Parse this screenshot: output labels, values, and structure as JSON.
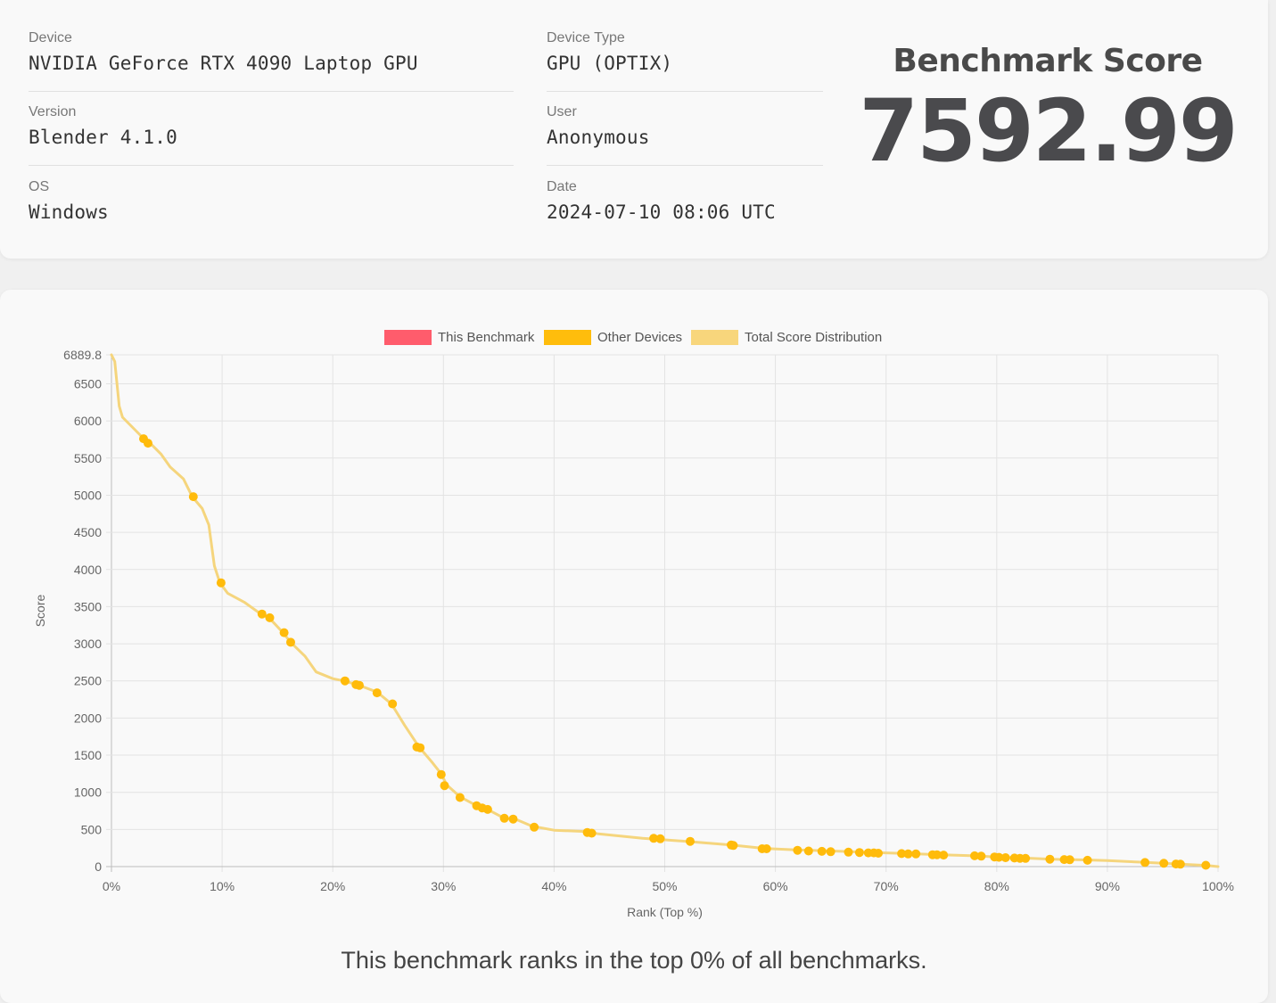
{
  "info": {
    "device_label": "Device",
    "device_value": "NVIDIA GeForce RTX 4090 Laptop GPU",
    "version_label": "Version",
    "version_value": "Blender 4.1.0",
    "os_label": "OS",
    "os_value": "Windows",
    "device_type_label": "Device Type",
    "device_type_value": "GPU (OPTIX)",
    "user_label": "User",
    "user_value": "Anonymous",
    "date_label": "Date",
    "date_value": "2024-07-10 08:06 UTC"
  },
  "score": {
    "title": "Benchmark Score",
    "value": "7592.99"
  },
  "rank_text": "This benchmark ranks in the top 0% of all benchmarks.",
  "chart_data": {
    "type": "line",
    "xlabel": "Rank (Top %)",
    "ylabel": "Score",
    "xlim": [
      0,
      100
    ],
    "ylim": [
      0,
      6889.8
    ],
    "x_ticks": [
      "0%",
      "10%",
      "20%",
      "30%",
      "40%",
      "50%",
      "60%",
      "70%",
      "80%",
      "90%",
      "100%"
    ],
    "y_ticks": [
      "0",
      "500",
      "1000",
      "1500",
      "2000",
      "2500",
      "3000",
      "3500",
      "4000",
      "4500",
      "5000",
      "5500",
      "6000",
      "6500",
      "6889.8"
    ],
    "grid": true,
    "legend": [
      {
        "name": "This Benchmark",
        "color": "#ff5c6c"
      },
      {
        "name": "Other Devices",
        "color": "#ffbd0c"
      },
      {
        "name": "Total Score Distribution",
        "color": "#f8d67c"
      }
    ],
    "legend_position": "top",
    "series": [
      {
        "name": "Total Score Distribution",
        "color": "#f5d57d",
        "points": [
          [
            0,
            6890
          ],
          [
            0.3,
            6800
          ],
          [
            0.5,
            6500
          ],
          [
            0.7,
            6200
          ],
          [
            1,
            6050
          ],
          [
            2,
            5900
          ],
          [
            2.8,
            5780
          ],
          [
            3.5,
            5700
          ],
          [
            4.5,
            5550
          ],
          [
            5.3,
            5380
          ],
          [
            6.5,
            5220
          ],
          [
            7.3,
            4980
          ],
          [
            8.2,
            4820
          ],
          [
            8.8,
            4600
          ],
          [
            9.3,
            4050
          ],
          [
            9.8,
            3820
          ],
          [
            10.5,
            3680
          ],
          [
            12,
            3560
          ],
          [
            13.5,
            3400
          ],
          [
            14.3,
            3340
          ],
          [
            15.5,
            3150
          ],
          [
            16.2,
            3020
          ],
          [
            17.5,
            2830
          ],
          [
            18.5,
            2620
          ],
          [
            20,
            2530
          ],
          [
            21,
            2500
          ],
          [
            22.2,
            2450
          ],
          [
            24,
            2350
          ],
          [
            25.3,
            2190
          ],
          [
            26.5,
            1900
          ],
          [
            27.8,
            1610
          ],
          [
            29,
            1400
          ],
          [
            29.8,
            1250
          ],
          [
            30.3,
            1100
          ],
          [
            31.5,
            940
          ],
          [
            33,
            820
          ],
          [
            34,
            770
          ],
          [
            35.5,
            650
          ],
          [
            36.5,
            640
          ],
          [
            38,
            545
          ],
          [
            40,
            490
          ],
          [
            43,
            470
          ],
          [
            44,
            440
          ],
          [
            48,
            380
          ],
          [
            50,
            360
          ],
          [
            52,
            340
          ],
          [
            56,
            290
          ],
          [
            59,
            245
          ],
          [
            62,
            225
          ],
          [
            66,
            205
          ],
          [
            69,
            190
          ],
          [
            72,
            175
          ],
          [
            75,
            160
          ],
          [
            78,
            145
          ],
          [
            80,
            130
          ],
          [
            82.5,
            115
          ],
          [
            85,
            100
          ],
          [
            88,
            90
          ],
          [
            90,
            80
          ],
          [
            93,
            60
          ],
          [
            95,
            45
          ],
          [
            97,
            30
          ],
          [
            99,
            15
          ],
          [
            100,
            0
          ]
        ]
      },
      {
        "name": "Other Devices",
        "color": "#ffbb0b",
        "points": [
          [
            2.9,
            5760
          ],
          [
            3.3,
            5700
          ],
          [
            7.4,
            4980
          ],
          [
            9.9,
            3820
          ],
          [
            13.6,
            3400
          ],
          [
            14.3,
            3350
          ],
          [
            15.6,
            3150
          ],
          [
            16.2,
            3020
          ],
          [
            21.1,
            2500
          ],
          [
            22.1,
            2450
          ],
          [
            22.4,
            2440
          ],
          [
            24,
            2340
          ],
          [
            25.4,
            2190
          ],
          [
            27.6,
            1610
          ],
          [
            27.9,
            1600
          ],
          [
            29.8,
            1240
          ],
          [
            30.1,
            1090
          ],
          [
            31.5,
            930
          ],
          [
            33,
            820
          ],
          [
            33.5,
            790
          ],
          [
            34,
            770
          ],
          [
            35.5,
            650
          ],
          [
            36.3,
            640
          ],
          [
            38.2,
            530
          ],
          [
            43,
            460
          ],
          [
            43.4,
            450
          ],
          [
            49,
            380
          ],
          [
            49.6,
            375
          ],
          [
            52.3,
            340
          ],
          [
            56,
            290
          ],
          [
            56.2,
            285
          ],
          [
            58.8,
            240
          ],
          [
            59.2,
            240
          ],
          [
            62,
            220
          ],
          [
            63,
            210
          ],
          [
            64.2,
            205
          ],
          [
            65,
            200
          ],
          [
            66.6,
            195
          ],
          [
            67.6,
            190
          ],
          [
            68.4,
            185
          ],
          [
            68.9,
            185
          ],
          [
            69.3,
            180
          ],
          [
            71.4,
            175
          ],
          [
            72,
            170
          ],
          [
            72.7,
            170
          ],
          [
            74.2,
            160
          ],
          [
            74.6,
            160
          ],
          [
            75.2,
            155
          ],
          [
            78,
            145
          ],
          [
            78.6,
            140
          ],
          [
            79.8,
            130
          ],
          [
            80.2,
            125
          ],
          [
            80.8,
            120
          ],
          [
            81.6,
            115
          ],
          [
            82.1,
            112
          ],
          [
            82.6,
            110
          ],
          [
            84.8,
            100
          ],
          [
            86.1,
            95
          ],
          [
            86.6,
            92
          ],
          [
            88.2,
            85
          ],
          [
            93.4,
            55
          ],
          [
            95.1,
            45
          ],
          [
            96.2,
            35
          ],
          [
            96.6,
            33
          ],
          [
            98.9,
            18
          ]
        ]
      }
    ]
  }
}
